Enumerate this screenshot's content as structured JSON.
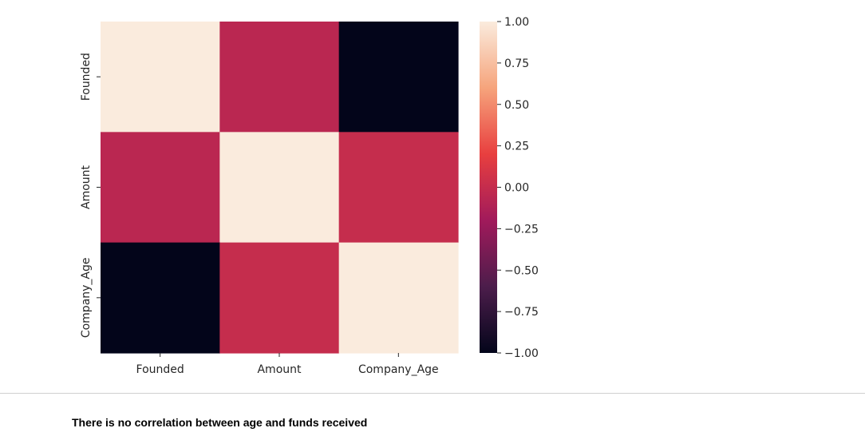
{
  "chart_data": {
    "type": "heatmap",
    "x_categories": [
      "Founded",
      "Amount",
      "Company_Age"
    ],
    "y_categories": [
      "Founded",
      "Amount",
      "Company_Age"
    ],
    "values": [
      [
        1.0,
        -0.06,
        -1.0
      ],
      [
        -0.06,
        1.0,
        0.0
      ],
      [
        -1.0,
        0.0,
        1.0
      ]
    ],
    "colorbar": {
      "vmin": -1.0,
      "vmax": 1.0,
      "ticks": [
        1.0,
        0.75,
        0.5,
        0.25,
        0.0,
        -0.25,
        -0.5,
        -0.75,
        -1.0
      ],
      "tick_labels": [
        "1.00",
        "0.75",
        "0.50",
        "0.25",
        "0.00",
        "−0.25",
        "−0.50",
        "−0.75",
        "−1.00"
      ],
      "colormap": "rocket",
      "colormap_stops": [
        "#03051a",
        "#4c1d4b",
        "#a11a5b",
        "#e83f3f",
        "#f6a47c",
        "#faebdd"
      ]
    },
    "title": "",
    "xlabel": "",
    "ylabel": ""
  },
  "caption": "There is no correlation between age and funds received",
  "colors": {
    "text": "#262626",
    "divider": "#cfcfcf"
  }
}
